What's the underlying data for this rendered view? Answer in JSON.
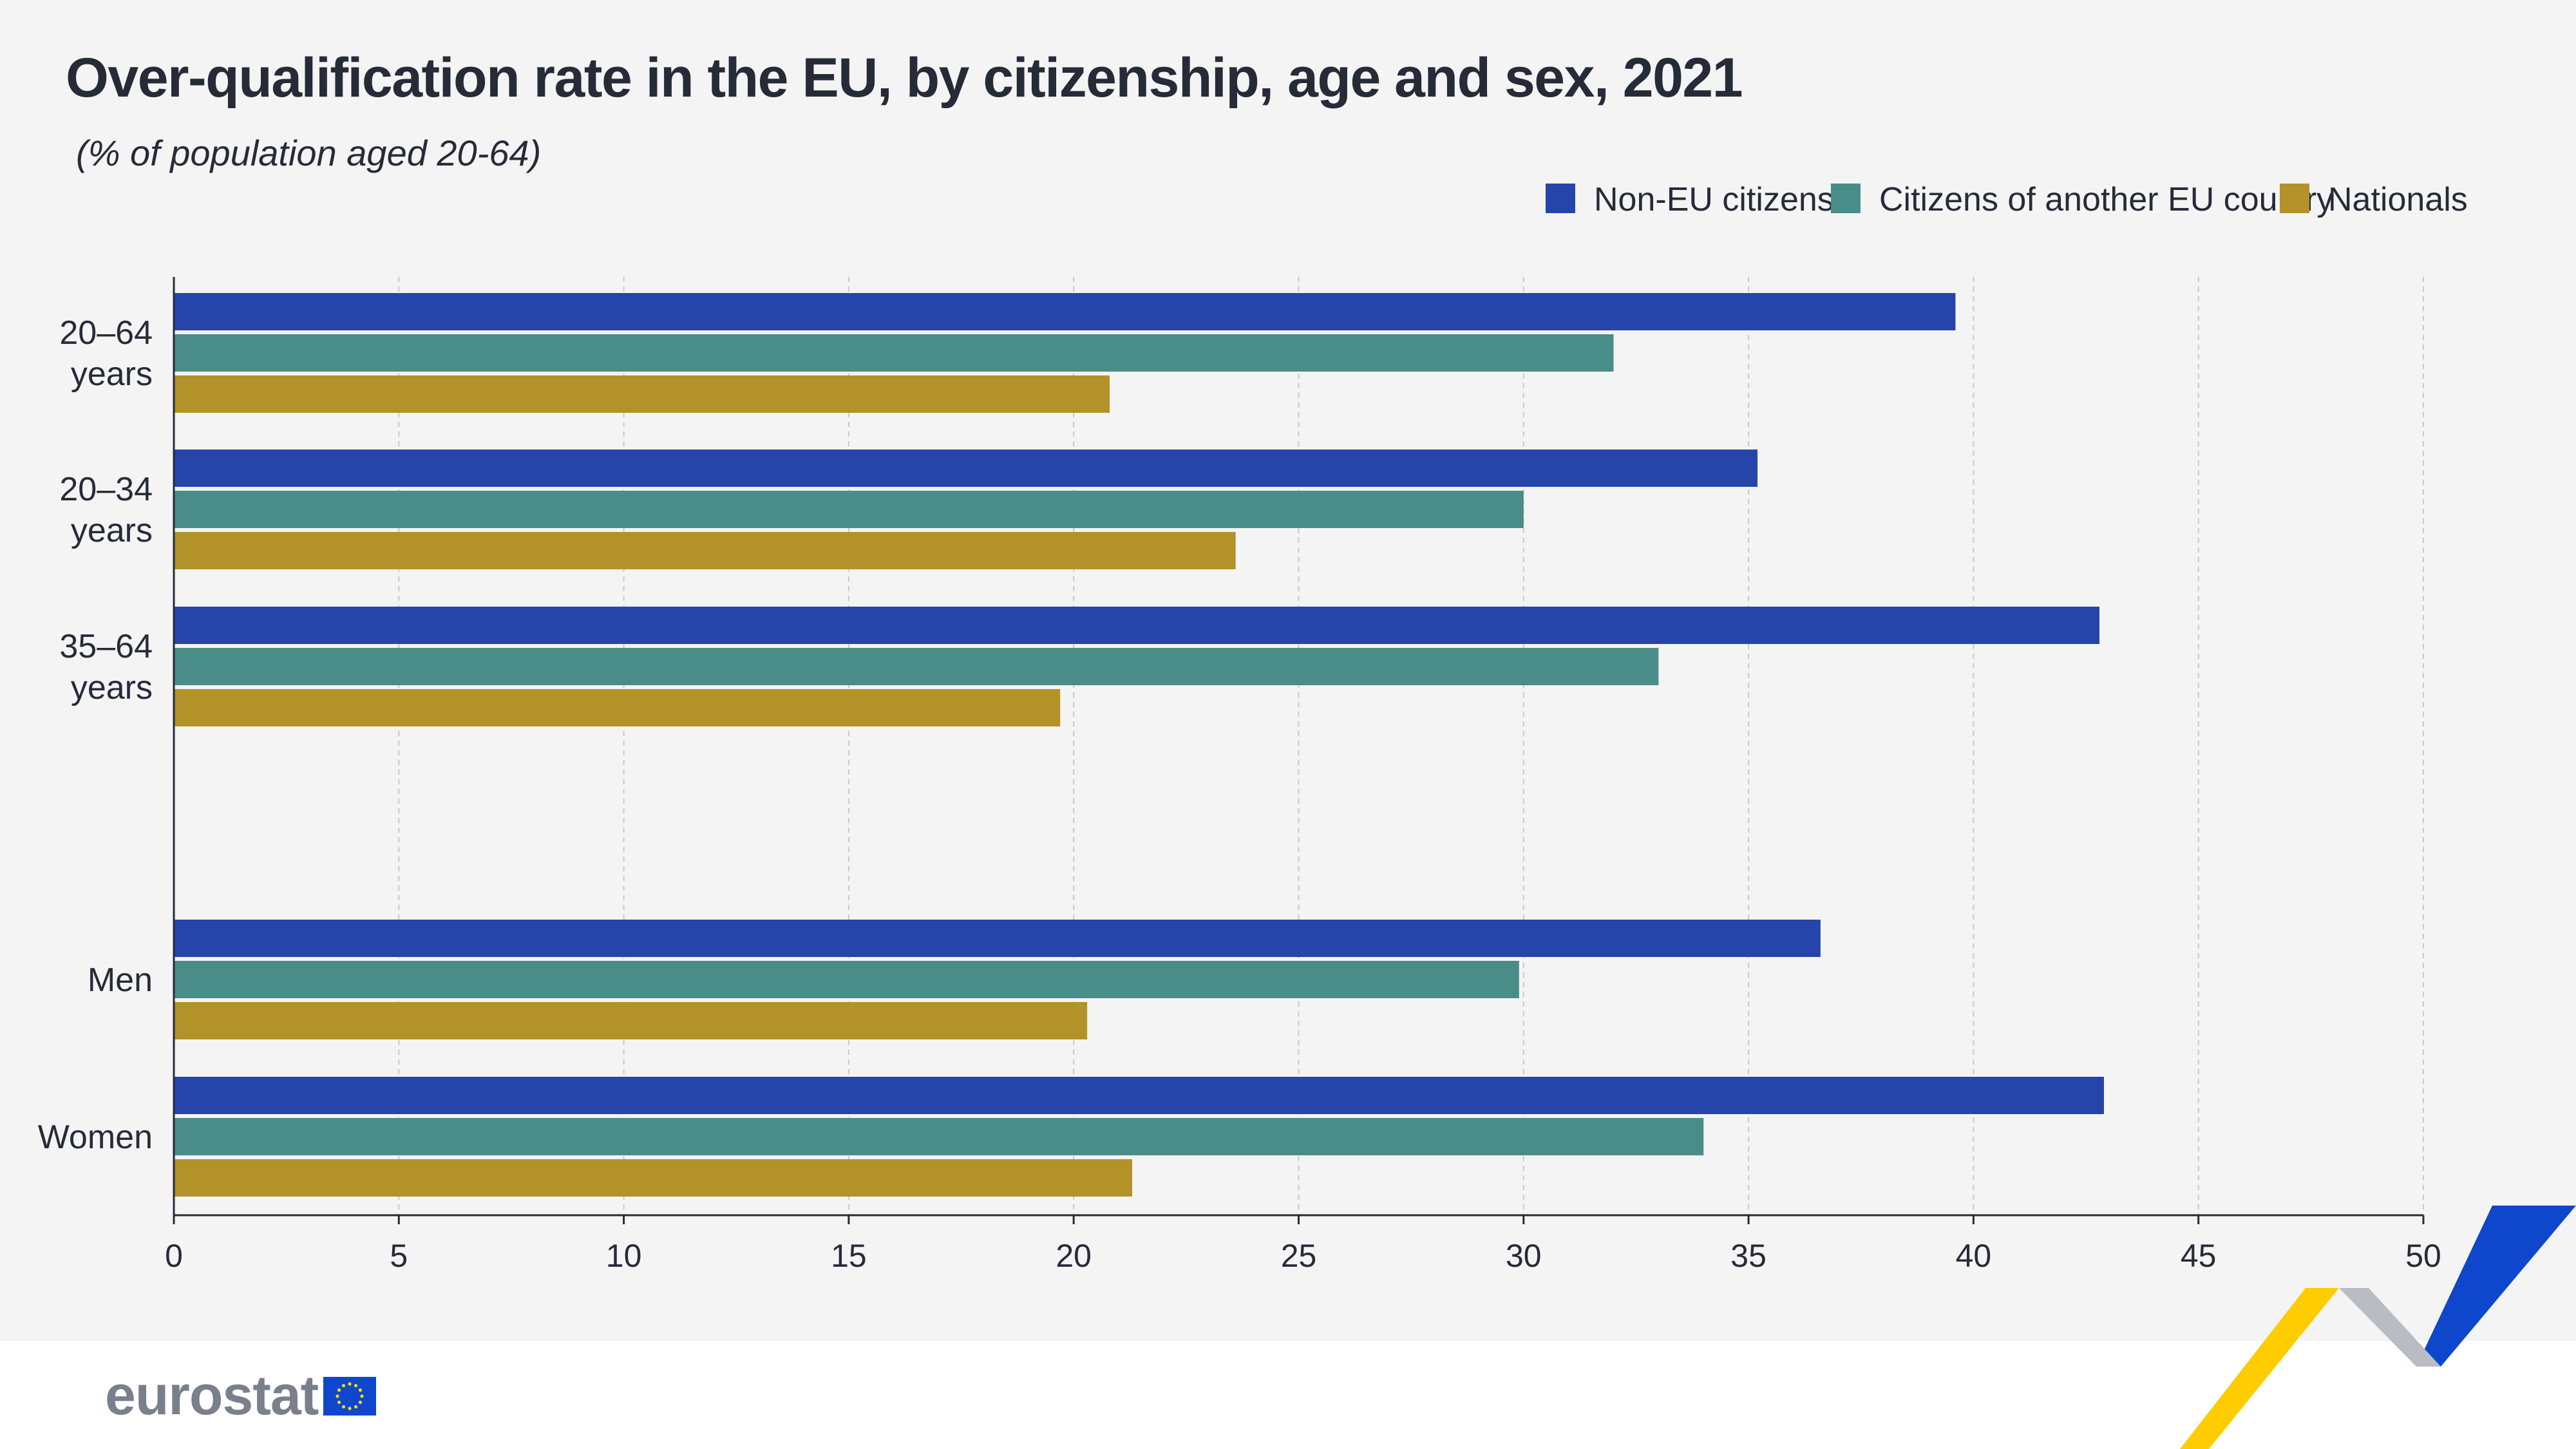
{
  "header": {
    "title": "Over-qualification rate in the EU, by citizenship, age and sex, 2021",
    "subtitle": "(% of population aged 20-64)"
  },
  "colors": {
    "non_eu": "#2645aa",
    "other_eu": "#4a8c87",
    "nationals": "#b3922a",
    "background": "#f4f4f4",
    "axis": "#262b38",
    "grid": "#c8c8c8"
  },
  "chart_data": {
    "type": "bar",
    "orientation": "horizontal",
    "title": "Over-qualification rate in the EU, by citizenship, age and sex, 2021",
    "subtitle": "(% of population aged 20-64)",
    "categories": [
      {
        "label_lines": [
          "20–64",
          "years"
        ],
        "group": "age"
      },
      {
        "label_lines": [
          "20–34",
          "years"
        ],
        "group": "age"
      },
      {
        "label_lines": [
          "35–64",
          "years"
        ],
        "group": "age"
      },
      {
        "label_lines": [
          "Men"
        ],
        "group": "sex"
      },
      {
        "label_lines": [
          "Women"
        ],
        "group": "sex"
      }
    ],
    "series": [
      {
        "name": "Non-EU citizens",
        "color": "#2645aa",
        "values": [
          39.6,
          35.2,
          42.8,
          36.6,
          42.9
        ]
      },
      {
        "name": "Citizens of another EU country",
        "color": "#4a8c87",
        "values": [
          32.0,
          30.0,
          33.0,
          29.9,
          34.0
        ]
      },
      {
        "name": "Nationals",
        "color": "#b3922a",
        "values": [
          20.8,
          23.6,
          19.7,
          20.3,
          21.3
        ]
      }
    ],
    "xlim": [
      0,
      50
    ],
    "x_ticks": [
      "0",
      "5",
      "10",
      "15",
      "20",
      "25",
      "30",
      "35",
      "40",
      "45",
      "50"
    ],
    "xlabel": "",
    "ylabel": "",
    "grid": "vertical dashed",
    "legend_position": "top-right"
  },
  "footer": {
    "logo_text": "eurostat"
  }
}
